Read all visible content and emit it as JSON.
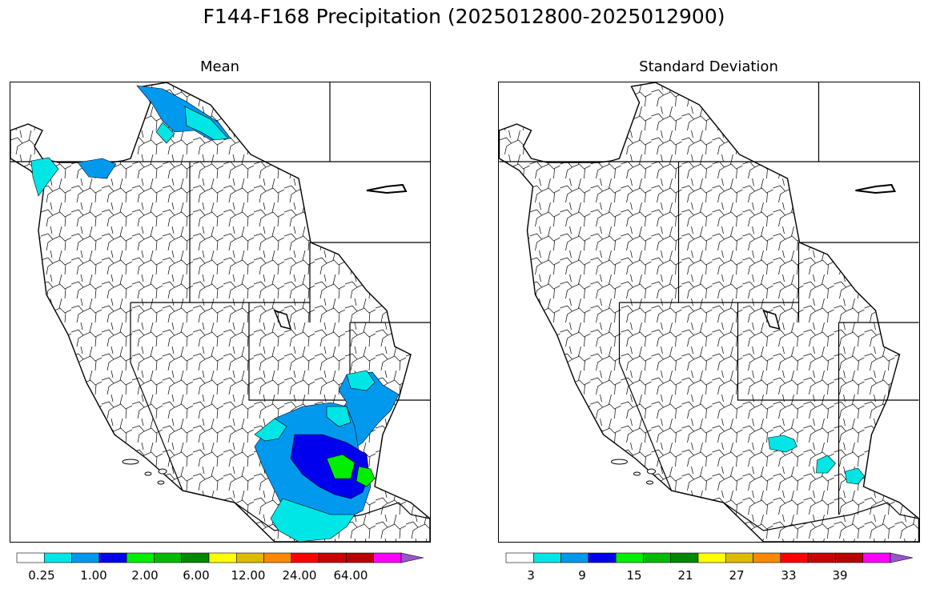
{
  "figure_title": "F144-F168 Precipitation (2025012800-2025012900)",
  "panels": [
    {
      "title": "Mean",
      "colorbar": {
        "colors": [
          "#ffffff",
          "#00e5e5",
          "#0099ee",
          "#0000ee",
          "#00ee00",
          "#00bb00",
          "#008800",
          "#ffff00",
          "#ddbb00",
          "#ff8800",
          "#ff0000",
          "#cc0000",
          "#bb0000",
          "#ff00ff",
          "#9955cc"
        ],
        "ticks": [
          "0.25",
          "1.00",
          "2.00",
          "6.00",
          "12.00",
          "24.00",
          "64.00"
        ]
      }
    },
    {
      "title": "Standard Deviation",
      "colorbar": {
        "colors": [
          "#ffffff",
          "#00e5e5",
          "#0099ee",
          "#0000ee",
          "#00ee00",
          "#00bb00",
          "#008800",
          "#ffff00",
          "#ddbb00",
          "#ff8800",
          "#ff0000",
          "#cc0000",
          "#bb0000",
          "#ff00ff",
          "#9955cc"
        ],
        "ticks": [
          "3",
          "9",
          "15",
          "21",
          "27",
          "33",
          "39"
        ]
      }
    }
  ]
}
